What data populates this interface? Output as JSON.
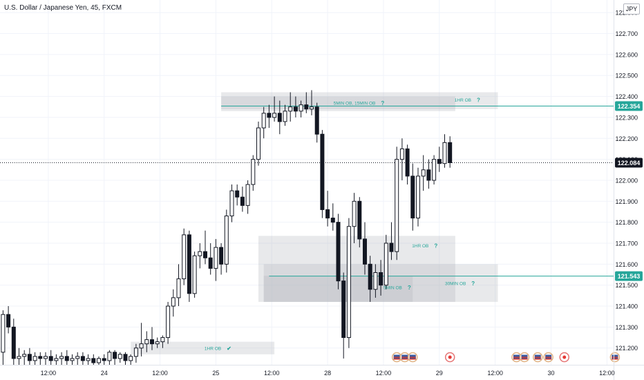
{
  "header": {
    "symbol_title": "U.S. Dollar / Japanese Yen, 45, FXCM",
    "currency": "JPY"
  },
  "chart_data": {
    "type": "candlestick",
    "title": "U.S. Dollar / Japanese Yen, 45, FXCM",
    "ylim": [
      121.12,
      122.86
    ],
    "x_ticks": [
      {
        "label": "12:00",
        "slot": 10.5
      },
      {
        "label": "24",
        "slot": 21
      },
      {
        "label": "12:00",
        "slot": 31.5
      },
      {
        "label": "25",
        "slot": 42
      },
      {
        "label": "12:00",
        "slot": 52.5
      },
      {
        "label": "28",
        "slot": 63
      },
      {
        "label": "12:00",
        "slot": 73.5
      },
      {
        "label": "29",
        "slot": 84
      },
      {
        "label": "12:00",
        "slot": 94.5
      },
      {
        "label": "30",
        "slot": 105
      },
      {
        "label": "12:00",
        "slot": 115.5
      }
    ],
    "y_ticks": [
      121.2,
      121.3,
      121.4,
      121.5,
      121.6,
      121.7,
      121.8,
      121.9,
      122.0,
      122.1,
      122.2,
      122.3,
      122.4,
      122.5,
      122.6,
      122.7,
      122.8
    ],
    "price_labels": [
      {
        "value": 122.354,
        "text": "122.354",
        "style": "green"
      },
      {
        "value": 122.084,
        "text": "122.084",
        "style": "dark"
      },
      {
        "value": 121.543,
        "text": "121.543",
        "style": "green"
      }
    ],
    "levels": [
      {
        "value": 122.354,
        "slot_start": 43,
        "color": "#26a69a"
      },
      {
        "value": 121.543,
        "slot_start": 52,
        "color": "#26a69a"
      }
    ],
    "current_price": 122.084,
    "zones": [
      {
        "slot_start": 43,
        "slot_end": 87,
        "top": 122.4,
        "bottom": 122.33,
        "label": "5MIN OB, 15MIN OB",
        "label_slot": 72,
        "label_value": 122.37,
        "mark": "?"
      },
      {
        "slot_start": 43,
        "slot_end": 95,
        "top": 122.42,
        "bottom": 122.34,
        "label": "1HR OB",
        "label_slot": 90,
        "label_value": 122.385,
        "mark": "?"
      },
      {
        "slot_start": 50,
        "slot_end": 87,
        "top": 121.735,
        "bottom": 121.42,
        "label": "1HR OB",
        "label_slot": 82,
        "label_value": 121.69,
        "mark": "?"
      },
      {
        "slot_start": 51,
        "slot_end": 95,
        "top": 121.6,
        "bottom": 121.42,
        "label": "30MIN OB",
        "label_slot": 89,
        "label_value": 121.51,
        "mark": "?"
      },
      {
        "slot_start": 51,
        "slot_end": 79,
        "top": 121.545,
        "bottom": 121.42,
        "label": "5MIN OB",
        "label_slot": 77,
        "label_value": 121.49,
        "mark": "?"
      },
      {
        "slot_start": 26,
        "slot_end": 53,
        "top": 121.23,
        "bottom": 121.17,
        "label": "1HR OB",
        "label_slot": 43,
        "label_value": 121.2,
        "mark": "✔"
      }
    ],
    "event_markers": [
      {
        "slot": 76,
        "kind": "flag"
      },
      {
        "slot": 77.5,
        "kind": "flag"
      },
      {
        "slot": 79,
        "kind": "flag"
      },
      {
        "slot": 86,
        "kind": "dot"
      },
      {
        "slot": 98.5,
        "kind": "flag"
      },
      {
        "slot": 100,
        "kind": "flag"
      },
      {
        "slot": 102.5,
        "kind": "flag"
      },
      {
        "slot": 104.5,
        "kind": "flag"
      },
      {
        "slot": 107.5,
        "kind": "dot"
      },
      {
        "slot": 117,
        "kind": "flag"
      }
    ],
    "candles": [
      {
        "o": 121.2,
        "h": 121.42,
        "l": 121.12,
        "c": 121.18
      },
      {
        "o": 121.18,
        "h": 121.38,
        "l": 121.12,
        "c": 121.36
      },
      {
        "o": 121.36,
        "h": 121.4,
        "l": 121.27,
        "c": 121.3
      },
      {
        "o": 121.3,
        "h": 121.34,
        "l": 121.12,
        "c": 121.15
      },
      {
        "o": 121.15,
        "h": 121.2,
        "l": 121.12,
        "c": 121.16
      },
      {
        "o": 121.16,
        "h": 121.19,
        "l": 121.12,
        "c": 121.17
      },
      {
        "o": 121.17,
        "h": 121.2,
        "l": 121.12,
        "c": 121.14
      },
      {
        "o": 121.14,
        "h": 121.18,
        "l": 121.12,
        "c": 121.16
      },
      {
        "o": 121.16,
        "h": 121.18,
        "l": 121.12,
        "c": 121.15
      },
      {
        "o": 121.15,
        "h": 121.18,
        "l": 121.12,
        "c": 121.16
      },
      {
        "o": 121.16,
        "h": 121.19,
        "l": 121.12,
        "c": 121.14
      },
      {
        "o": 121.14,
        "h": 121.17,
        "l": 121.12,
        "c": 121.15
      },
      {
        "o": 121.15,
        "h": 121.18,
        "l": 121.12,
        "c": 121.16
      },
      {
        "o": 121.16,
        "h": 121.19,
        "l": 121.12,
        "c": 121.14
      },
      {
        "o": 121.14,
        "h": 121.17,
        "l": 121.12,
        "c": 121.15
      },
      {
        "o": 121.15,
        "h": 121.18,
        "l": 121.12,
        "c": 121.16
      },
      {
        "o": 121.16,
        "h": 121.18,
        "l": 121.12,
        "c": 121.14
      },
      {
        "o": 121.14,
        "h": 121.17,
        "l": 121.12,
        "c": 121.15
      },
      {
        "o": 121.15,
        "h": 121.17,
        "l": 121.12,
        "c": 121.13
      },
      {
        "o": 121.13,
        "h": 121.16,
        "l": 121.12,
        "c": 121.15
      },
      {
        "o": 121.15,
        "h": 121.17,
        "l": 121.12,
        "c": 121.14
      },
      {
        "o": 121.14,
        "h": 121.19,
        "l": 121.12,
        "c": 121.18
      },
      {
        "o": 121.18,
        "h": 121.19,
        "l": 121.12,
        "c": 121.15
      },
      {
        "o": 121.15,
        "h": 121.18,
        "l": 121.13,
        "c": 121.17
      },
      {
        "o": 121.17,
        "h": 121.18,
        "l": 121.12,
        "c": 121.14
      },
      {
        "o": 121.14,
        "h": 121.17,
        "l": 121.12,
        "c": 121.16
      },
      {
        "o": 121.16,
        "h": 121.22,
        "l": 121.13,
        "c": 121.2
      },
      {
        "o": 121.2,
        "h": 121.32,
        "l": 121.16,
        "c": 121.22
      },
      {
        "o": 121.22,
        "h": 121.28,
        "l": 121.18,
        "c": 121.24
      },
      {
        "o": 121.24,
        "h": 121.3,
        "l": 121.19,
        "c": 121.22
      },
      {
        "o": 121.22,
        "h": 121.25,
        "l": 121.2,
        "c": 121.23
      },
      {
        "o": 121.23,
        "h": 121.26,
        "l": 121.2,
        "c": 121.25
      },
      {
        "o": 121.25,
        "h": 121.42,
        "l": 121.22,
        "c": 121.4
      },
      {
        "o": 121.4,
        "h": 121.48,
        "l": 121.35,
        "c": 121.44
      },
      {
        "o": 121.44,
        "h": 121.6,
        "l": 121.4,
        "c": 121.53
      },
      {
        "o": 121.53,
        "h": 121.77,
        "l": 121.5,
        "c": 121.74
      },
      {
        "o": 121.74,
        "h": 121.76,
        "l": 121.42,
        "c": 121.46
      },
      {
        "o": 121.46,
        "h": 121.66,
        "l": 121.44,
        "c": 121.64
      },
      {
        "o": 121.64,
        "h": 121.7,
        "l": 121.58,
        "c": 121.66
      },
      {
        "o": 121.66,
        "h": 121.76,
        "l": 121.6,
        "c": 121.63
      },
      {
        "o": 121.63,
        "h": 121.7,
        "l": 121.55,
        "c": 121.58
      },
      {
        "o": 121.58,
        "h": 121.72,
        "l": 121.52,
        "c": 121.68
      },
      {
        "o": 121.68,
        "h": 121.7,
        "l": 121.55,
        "c": 121.6
      },
      {
        "o": 121.6,
        "h": 121.86,
        "l": 121.56,
        "c": 121.83
      },
      {
        "o": 121.83,
        "h": 121.98,
        "l": 121.8,
        "c": 121.95
      },
      {
        "o": 121.95,
        "h": 121.98,
        "l": 121.88,
        "c": 121.92
      },
      {
        "o": 121.92,
        "h": 121.97,
        "l": 121.85,
        "c": 121.88
      },
      {
        "o": 121.88,
        "h": 122.0,
        "l": 121.84,
        "c": 121.98
      },
      {
        "o": 121.98,
        "h": 122.12,
        "l": 121.95,
        "c": 122.1
      },
      {
        "o": 122.1,
        "h": 122.28,
        "l": 122.07,
        "c": 122.25
      },
      {
        "o": 122.25,
        "h": 122.35,
        "l": 122.2,
        "c": 122.32
      },
      {
        "o": 122.32,
        "h": 122.36,
        "l": 122.25,
        "c": 122.3
      },
      {
        "o": 122.3,
        "h": 122.4,
        "l": 122.28,
        "c": 122.32
      },
      {
        "o": 122.32,
        "h": 122.38,
        "l": 122.22,
        "c": 122.28
      },
      {
        "o": 122.28,
        "h": 122.36,
        "l": 122.26,
        "c": 122.33
      },
      {
        "o": 122.33,
        "h": 122.42,
        "l": 122.28,
        "c": 122.35
      },
      {
        "o": 122.35,
        "h": 122.4,
        "l": 122.3,
        "c": 122.33
      },
      {
        "o": 122.33,
        "h": 122.38,
        "l": 122.3,
        "c": 122.36
      },
      {
        "o": 122.36,
        "h": 122.42,
        "l": 122.32,
        "c": 122.34
      },
      {
        "o": 122.34,
        "h": 122.43,
        "l": 122.31,
        "c": 122.35
      },
      {
        "o": 122.35,
        "h": 122.37,
        "l": 122.18,
        "c": 122.22
      },
      {
        "o": 122.22,
        "h": 122.24,
        "l": 121.82,
        "c": 121.86
      },
      {
        "o": 121.86,
        "h": 121.95,
        "l": 121.78,
        "c": 121.82
      },
      {
        "o": 121.82,
        "h": 121.89,
        "l": 121.76,
        "c": 121.8
      },
      {
        "o": 121.8,
        "h": 121.84,
        "l": 121.48,
        "c": 121.52
      },
      {
        "o": 121.52,
        "h": 121.56,
        "l": 121.15,
        "c": 121.25
      },
      {
        "o": 121.25,
        "h": 121.82,
        "l": 121.2,
        "c": 121.78
      },
      {
        "o": 121.78,
        "h": 121.94,
        "l": 121.7,
        "c": 121.9
      },
      {
        "o": 121.9,
        "h": 121.92,
        "l": 121.68,
        "c": 121.72
      },
      {
        "o": 121.72,
        "h": 121.8,
        "l": 121.55,
        "c": 121.6
      },
      {
        "o": 121.6,
        "h": 121.64,
        "l": 121.42,
        "c": 121.48
      },
      {
        "o": 121.48,
        "h": 121.6,
        "l": 121.44,
        "c": 121.56
      },
      {
        "o": 121.56,
        "h": 121.62,
        "l": 121.45,
        "c": 121.5
      },
      {
        "o": 121.5,
        "h": 121.74,
        "l": 121.48,
        "c": 121.7
      },
      {
        "o": 121.7,
        "h": 121.8,
        "l": 121.62,
        "c": 121.66
      },
      {
        "o": 121.66,
        "h": 122.16,
        "l": 121.62,
        "c": 122.1
      },
      {
        "o": 122.1,
        "h": 122.2,
        "l": 122.0,
        "c": 122.15
      },
      {
        "o": 122.15,
        "h": 122.17,
        "l": 121.98,
        "c": 122.02
      },
      {
        "o": 122.02,
        "h": 122.08,
        "l": 121.76,
        "c": 121.82
      },
      {
        "o": 121.82,
        "h": 122.06,
        "l": 121.78,
        "c": 122.02
      },
      {
        "o": 122.02,
        "h": 122.12,
        "l": 121.95,
        "c": 122.05
      },
      {
        "o": 122.05,
        "h": 122.1,
        "l": 121.96,
        "c": 122.0
      },
      {
        "o": 122.0,
        "h": 122.12,
        "l": 121.98,
        "c": 122.1
      },
      {
        "o": 122.1,
        "h": 122.16,
        "l": 122.04,
        "c": 122.08
      },
      {
        "o": 122.08,
        "h": 122.22,
        "l": 122.06,
        "c": 122.18
      },
      {
        "o": 122.18,
        "h": 122.21,
        "l": 122.06,
        "c": 122.084
      }
    ]
  }
}
